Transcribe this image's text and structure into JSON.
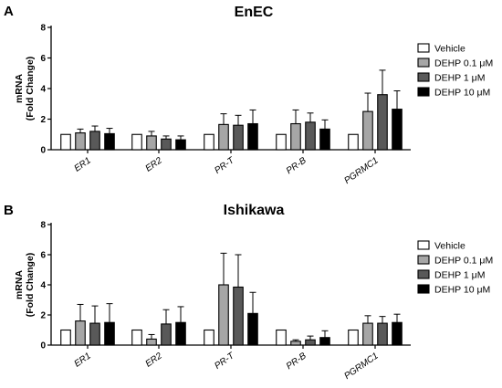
{
  "legend_labels": [
    "Vehicle",
    "DEHP 0.1 μM",
    "DEHP 1 μM",
    "DEHP 10 μM"
  ],
  "colors": [
    "#ffffff",
    "#a6a6a6",
    "#595959",
    "#000000"
  ],
  "chart_data": [
    {
      "type": "bar",
      "panel_letter": "A",
      "title": "EnEC",
      "ylabel": "mRNA\n(Fold Change)",
      "ylim": [
        0,
        8
      ],
      "yticks": [
        0,
        2,
        4,
        6,
        8
      ],
      "categories": [
        "ER1",
        "ER2",
        "PR-T",
        "PR-B",
        "PGRMC1"
      ],
      "legend": "right",
      "grid": false,
      "series": [
        {
          "name": "Vehicle",
          "values": [
            1.0,
            1.0,
            1.0,
            1.0,
            1.0
          ],
          "errors": [
            0,
            0,
            0,
            0,
            0
          ]
        },
        {
          "name": "DEHP 0.1 μM",
          "values": [
            1.1,
            0.9,
            1.65,
            1.7,
            2.5
          ],
          "errors": [
            0.25,
            0.3,
            0.7,
            0.9,
            1.2
          ]
        },
        {
          "name": "DEHP 1 μM",
          "values": [
            1.2,
            0.7,
            1.6,
            1.8,
            3.6
          ],
          "errors": [
            0.35,
            0.2,
            0.65,
            0.6,
            1.6
          ]
        },
        {
          "name": "DEHP 10 μM",
          "values": [
            1.05,
            0.65,
            1.7,
            1.35,
            2.65
          ],
          "errors": [
            0.35,
            0.25,
            0.9,
            0.6,
            1.2
          ]
        }
      ]
    },
    {
      "type": "bar",
      "panel_letter": "B",
      "title": "Ishikawa",
      "ylabel": "mRNA\n(Fold Change)",
      "ylim": [
        0,
        8
      ],
      "yticks": [
        0,
        2,
        4,
        6,
        8
      ],
      "categories": [
        "ER1",
        "ER2",
        "PR-T",
        "PR-B",
        "PGRMC1"
      ],
      "legend": "right",
      "grid": false,
      "series": [
        {
          "name": "Vehicle",
          "values": [
            1.0,
            1.0,
            1.0,
            1.0,
            1.0
          ],
          "errors": [
            0,
            0,
            0,
            0,
            0
          ]
        },
        {
          "name": "DEHP 0.1 μM",
          "values": [
            1.6,
            0.4,
            4.0,
            0.25,
            1.45
          ],
          "errors": [
            1.1,
            0.3,
            2.1,
            0.1,
            0.5
          ]
        },
        {
          "name": "DEHP 1 μM",
          "values": [
            1.45,
            1.4,
            3.85,
            0.35,
            1.45
          ],
          "errors": [
            1.15,
            0.95,
            2.15,
            0.25,
            0.45
          ]
        },
        {
          "name": "DEHP 10 μM",
          "values": [
            1.5,
            1.5,
            2.1,
            0.5,
            1.5
          ],
          "errors": [
            1.25,
            1.05,
            1.4,
            0.45,
            0.55
          ]
        }
      ]
    }
  ]
}
